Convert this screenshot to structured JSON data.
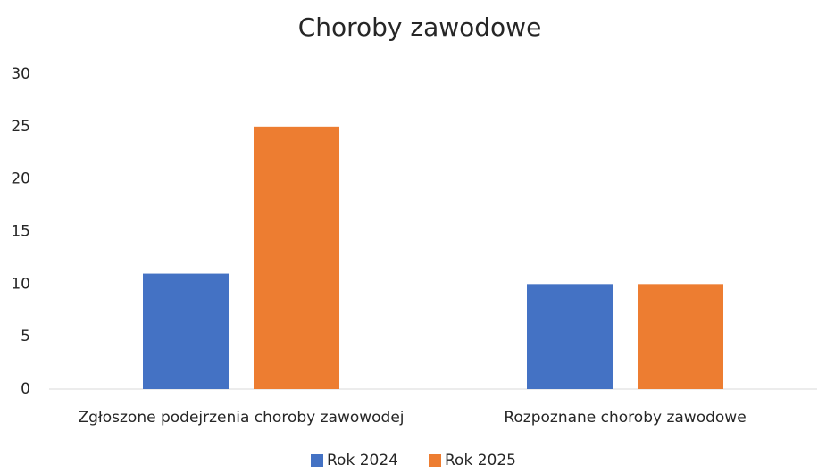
{
  "chart_data": {
    "type": "bar",
    "title": "Choroby zawodowe",
    "categories": [
      "Zgłoszone podejrzenia choroby zawowodej",
      "Rozpoznane choroby zawodowe"
    ],
    "series": [
      {
        "name": "Rok 2024",
        "color": "#4472c4",
        "values": [
          11,
          10
        ]
      },
      {
        "name": "Rok 2025",
        "color": "#ed7d31",
        "values": [
          25,
          10
        ]
      }
    ],
    "ylim": [
      0,
      30
    ],
    "yticks": [
      0,
      5,
      10,
      15,
      20,
      25,
      30
    ],
    "grid": false,
    "legend": "bottom"
  }
}
